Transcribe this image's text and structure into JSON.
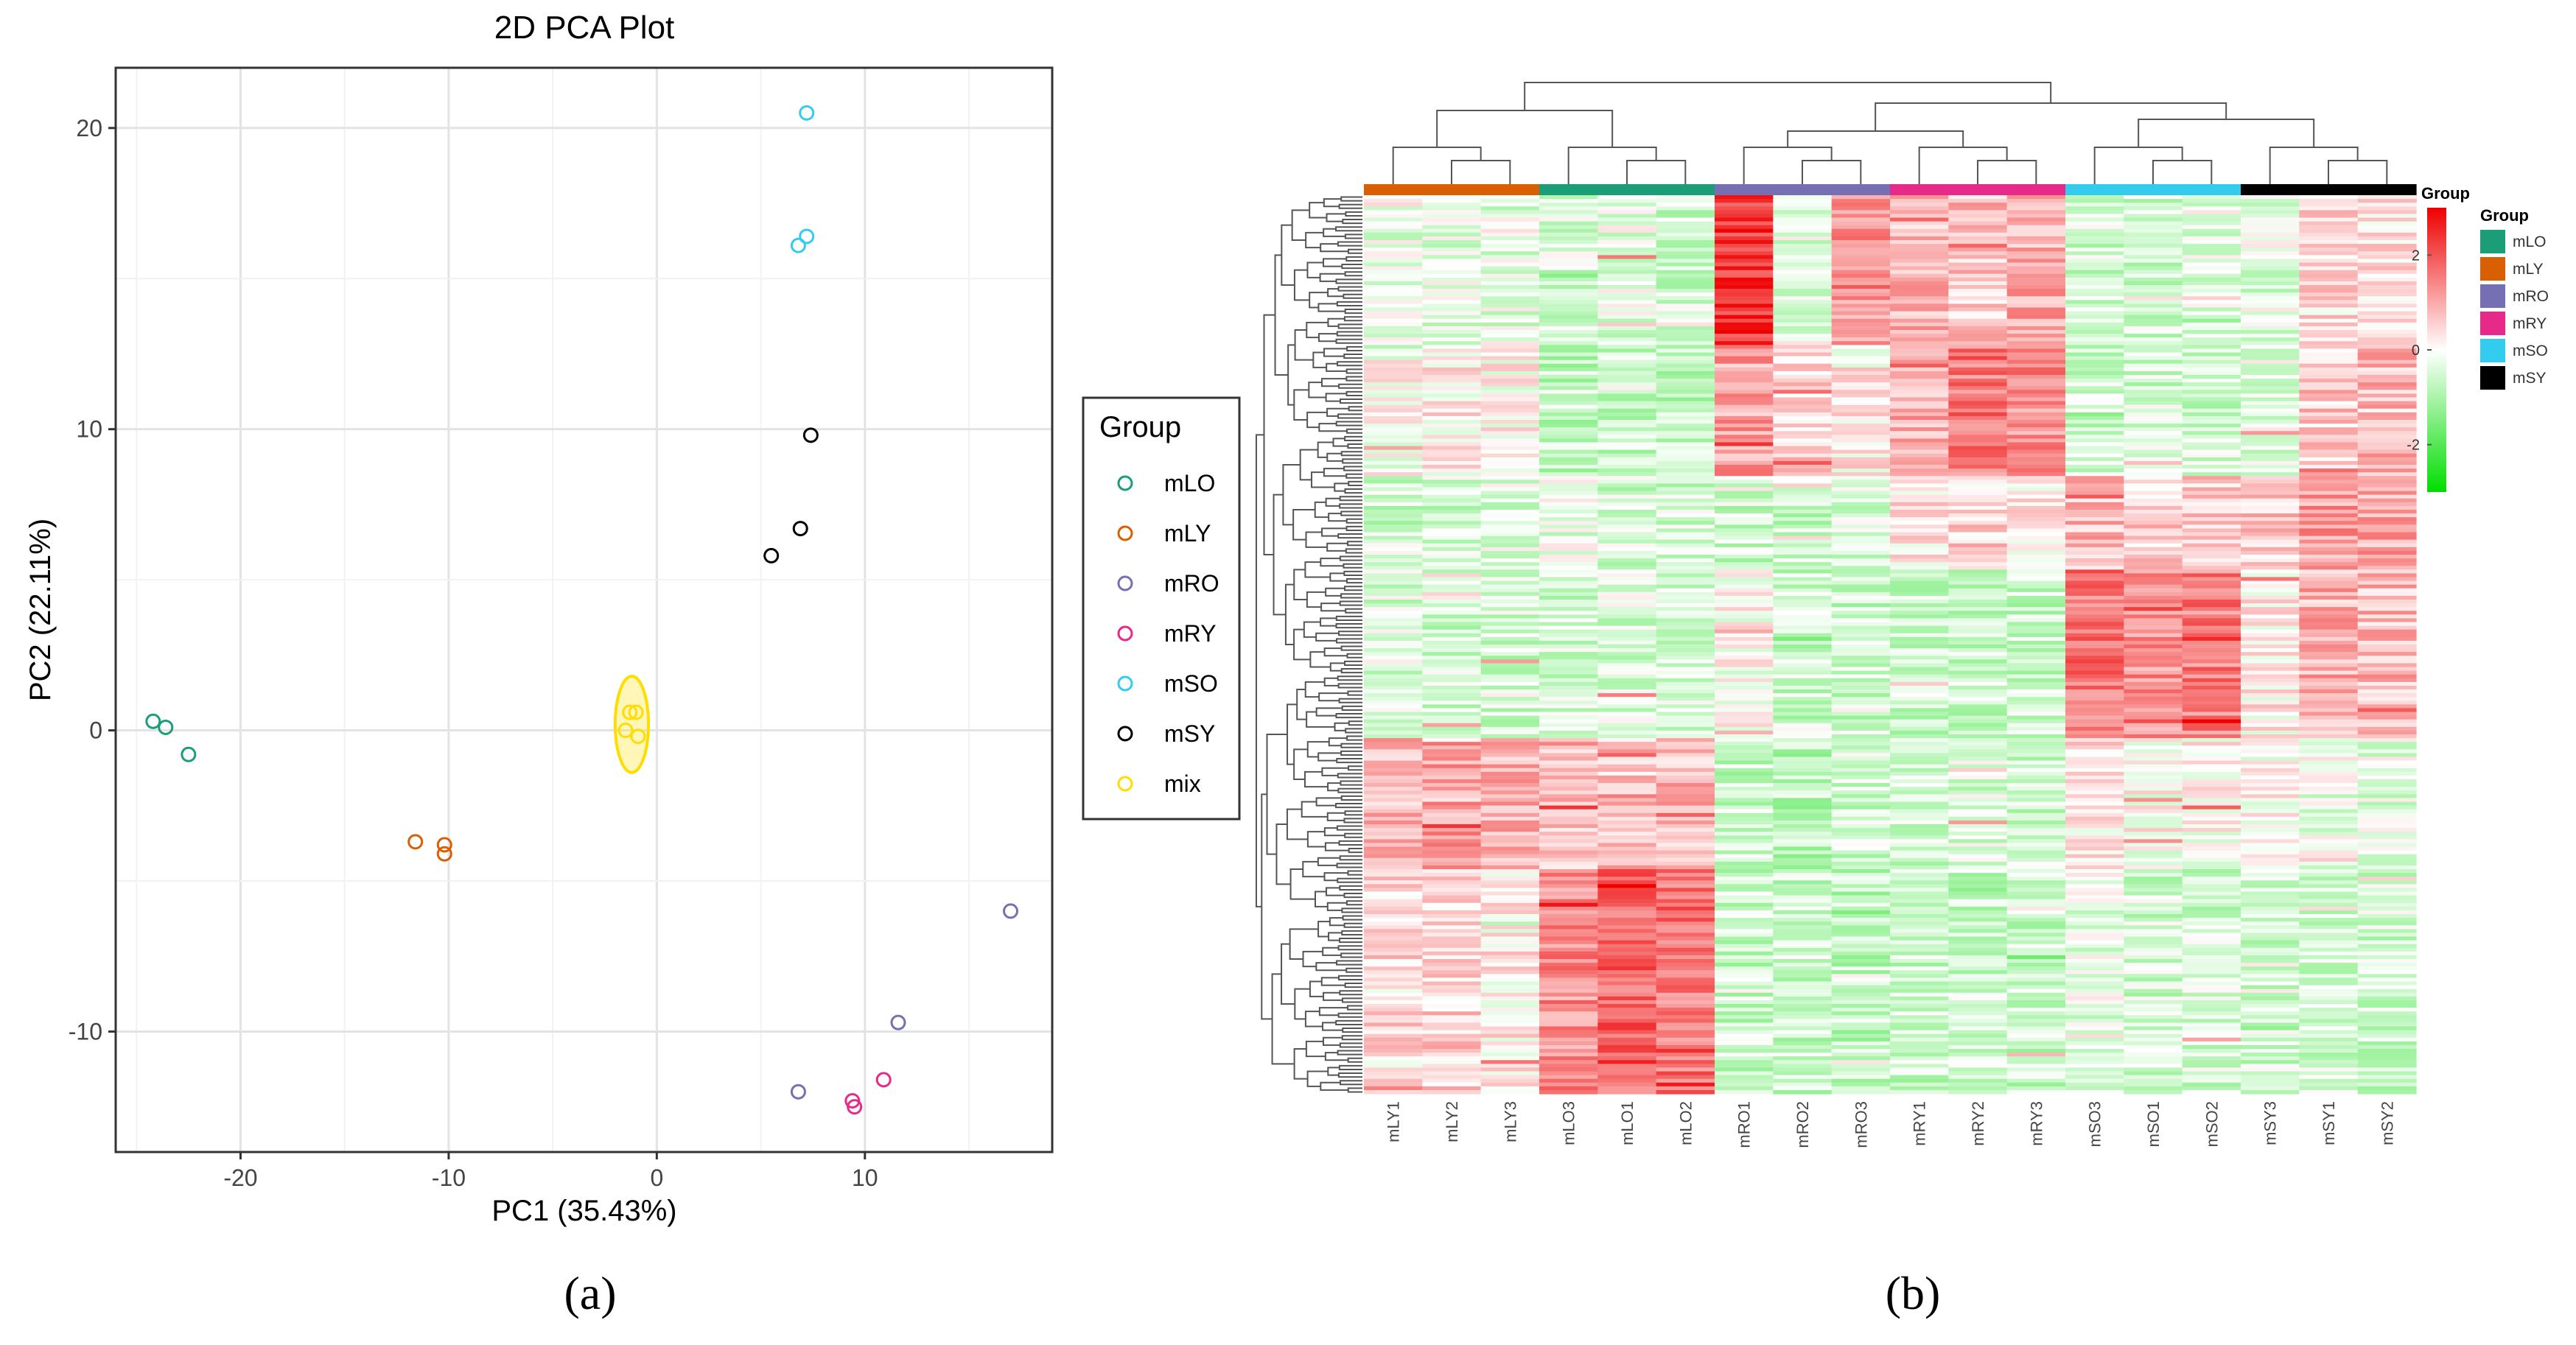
{
  "chart_data": [
    {
      "type": "scatter",
      "panel_label": "(a)",
      "title": "2D PCA Plot",
      "xlabel": "PC1 (35.43%)",
      "ylabel": "PC2 (22.11%)",
      "xlim": [
        -26,
        19
      ],
      "ylim": [
        -14,
        22
      ],
      "xticks": [
        -20,
        -10,
        0,
        10
      ],
      "xtick_labels": [
        "-20",
        "-10",
        "0",
        "10"
      ],
      "yticks": [
        -10,
        0,
        10,
        20
      ],
      "ytick_labels": [
        "-10",
        "0",
        "10",
        "20"
      ],
      "grid": true,
      "legend": {
        "title": "Group",
        "position": "right",
        "entries": [
          {
            "name": "mLO",
            "color": "#1b9e77"
          },
          {
            "name": "mLY",
            "color": "#d95f02"
          },
          {
            "name": "mRO",
            "color": "#7570b3"
          },
          {
            "name": "mRY",
            "color": "#e7298a"
          },
          {
            "name": "mSO",
            "color": "#33ccee"
          },
          {
            "name": "mSY",
            "color": "#000000"
          },
          {
            "name": "mix",
            "color": "#ffdd00"
          }
        ]
      },
      "series": [
        {
          "name": "mLO",
          "points": [
            [
              -24.2,
              0.3
            ],
            [
              -23.6,
              0.1
            ],
            [
              -22.5,
              -0.8
            ]
          ]
        },
        {
          "name": "mLY",
          "points": [
            [
              -11.6,
              -3.7
            ],
            [
              -10.2,
              -3.8
            ],
            [
              -10.2,
              -4.1
            ]
          ]
        },
        {
          "name": "mRO",
          "points": [
            [
              17.0,
              -6.0
            ],
            [
              11.6,
              -9.7
            ],
            [
              6.8,
              -12.0
            ]
          ]
        },
        {
          "name": "mRY",
          "points": [
            [
              10.9,
              -11.6
            ],
            [
              9.4,
              -12.3
            ],
            [
              9.5,
              -12.5
            ]
          ]
        },
        {
          "name": "mSO",
          "points": [
            [
              7.2,
              20.5
            ],
            [
              7.2,
              16.4
            ],
            [
              6.8,
              16.1
            ]
          ]
        },
        {
          "name": "mSY",
          "points": [
            [
              7.4,
              9.8
            ],
            [
              6.9,
              6.7
            ],
            [
              5.5,
              5.8
            ]
          ]
        },
        {
          "name": "mix",
          "points": [
            [
              -1.3,
              0.6
            ],
            [
              -1.0,
              0.6
            ],
            [
              -1.5,
              0.0
            ],
            [
              -0.9,
              -0.2
            ]
          ],
          "ellipse": {
            "cx": -1.2,
            "cy": 0.2,
            "rx": 0.8,
            "ry": 1.6
          }
        }
      ]
    },
    {
      "type": "heatmap",
      "panel_label": "(b)",
      "columns": [
        "mLY1",
        "mLY2",
        "mLY3",
        "mLO3",
        "mLO1",
        "mLO2",
        "mRO1",
        "mRO2",
        "mRO3",
        "mRY1",
        "mRY2",
        "mRY3",
        "mSO3",
        "mSO1",
        "mSO2",
        "mSY3",
        "mSY1",
        "mSY2"
      ],
      "column_groups": [
        "mLY",
        "mLY",
        "mLY",
        "mLO",
        "mLO",
        "mLO",
        "mRO",
        "mRO",
        "mRO",
        "mRY",
        "mRY",
        "mRY",
        "mSO",
        "mSO",
        "mSO",
        "mSY",
        "mSY",
        "mSY"
      ],
      "group_annotation_label": "Group",
      "colorscale": {
        "min": -3,
        "max": 3,
        "colors": [
          "#00dd00",
          "#ffffff",
          "#ee0000"
        ],
        "ticks": [
          2,
          0,
          -2
        ],
        "tick_labels": [
          "2",
          "0",
          "-2"
        ]
      },
      "legend": {
        "title": "Group",
        "entries": [
          {
            "name": "mLO",
            "color": "#1b9e77"
          },
          {
            "name": "mLY",
            "color": "#d95f02"
          },
          {
            "name": "mRO",
            "color": "#7570b3"
          },
          {
            "name": "mRY",
            "color": "#e7298a"
          },
          {
            "name": "mSO",
            "color": "#33ccee"
          },
          {
            "name": "mSY",
            "color": "#000000"
          }
        ]
      },
      "row_clusters": [
        {
          "name": "cluster-ro-high",
          "n_rows": 40,
          "means": [
            -0.3,
            -0.3,
            -0.3,
            -0.5,
            -0.3,
            -0.5,
            2.4,
            -0.3,
            1.3,
            0.8,
            0.7,
            1.0,
            -0.5,
            -0.5,
            -0.3,
            -0.3,
            0.4,
            0.4
          ]
        },
        {
          "name": "cluster-ry-high",
          "n_rows": 35,
          "means": [
            0.0,
            0.2,
            0.1,
            -0.7,
            -0.7,
            -0.7,
            1.1,
            0.5,
            0.2,
            1.0,
            1.6,
            1.3,
            -0.5,
            -0.5,
            -0.5,
            -0.3,
            0.6,
            0.8
          ]
        },
        {
          "name": "cluster-sy-mid",
          "n_rows": 25,
          "means": [
            -0.5,
            -0.5,
            -0.4,
            -0.3,
            -0.5,
            -0.5,
            -0.6,
            -0.6,
            -0.5,
            0.3,
            0.5,
            0.2,
            0.8,
            0.5,
            0.7,
            0.6,
            1.1,
            1.0
          ]
        },
        {
          "name": "cluster-so-high",
          "n_rows": 45,
          "means": [
            -0.4,
            -0.5,
            -0.5,
            -0.5,
            -0.4,
            -0.5,
            0.0,
            -0.6,
            -0.6,
            -0.6,
            -0.6,
            -0.6,
            1.6,
            1.3,
            1.5,
            0.2,
            0.9,
            0.8
          ]
        },
        {
          "name": "cluster-lo-ly-mix",
          "n_rows": 35,
          "means": [
            0.9,
            1.1,
            0.9,
            0.8,
            0.7,
            0.8,
            -0.6,
            -0.8,
            -0.5,
            -0.5,
            -0.4,
            -0.5,
            0.3,
            0.0,
            0.0,
            0.1,
            -0.2,
            -0.3
          ]
        },
        {
          "name": "cluster-lo-high",
          "n_rows": 60,
          "means": [
            0.4,
            0.5,
            0.2,
            1.3,
            1.8,
            1.6,
            -0.6,
            -0.6,
            -0.7,
            -0.6,
            -0.6,
            -0.6,
            -0.2,
            -0.5,
            -0.5,
            -0.5,
            -0.5,
            -0.5
          ]
        }
      ]
    }
  ]
}
